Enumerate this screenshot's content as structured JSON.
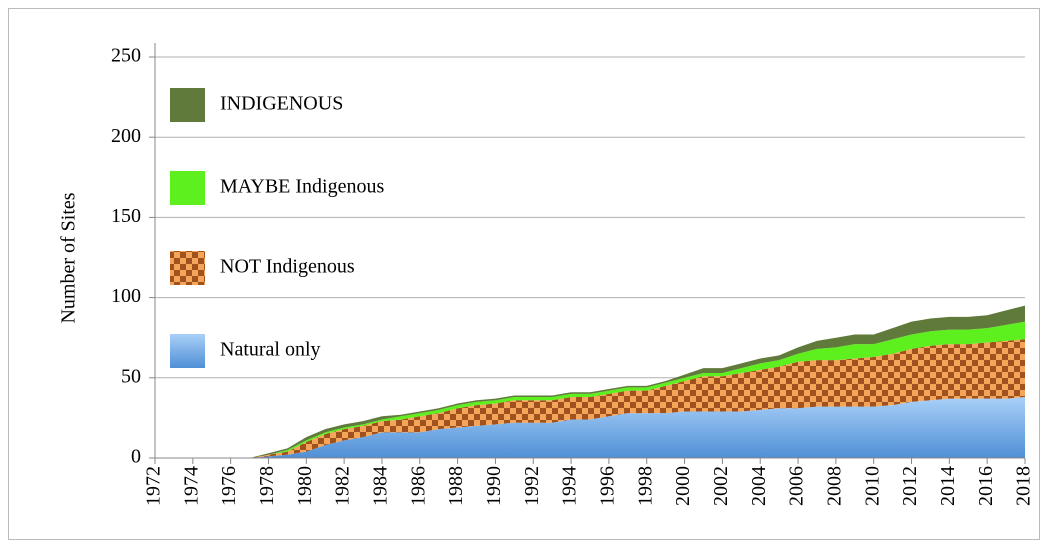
{
  "chart_data": {
    "type": "stacked_area",
    "ylabel": "Number of Sites",
    "x": [
      1972,
      1973,
      1974,
      1975,
      1976,
      1977,
      1978,
      1979,
      1980,
      1981,
      1982,
      1983,
      1984,
      1985,
      1986,
      1987,
      1988,
      1989,
      1990,
      1991,
      1992,
      1993,
      1994,
      1995,
      1996,
      1997,
      1998,
      1999,
      2000,
      2001,
      2002,
      2003,
      2004,
      2005,
      2006,
      2007,
      2008,
      2009,
      2010,
      2011,
      2012,
      2013,
      2014,
      2015,
      2016,
      2017,
      2018
    ],
    "xlim": [
      1972,
      2018
    ],
    "xticks": [
      1972,
      1974,
      1976,
      1978,
      1980,
      1982,
      1984,
      1986,
      1988,
      1990,
      1992,
      1994,
      1996,
      1998,
      2000,
      2002,
      2004,
      2006,
      2008,
      2010,
      2012,
      2014,
      2016,
      2018
    ],
    "ylim": [
      0,
      250
    ],
    "yticks": [
      0,
      50,
      100,
      150,
      200,
      250
    ],
    "grid": true,
    "legend": "upper left",
    "series": [
      {
        "name": "Natural only",
        "color": "#6fa8e6",
        "values": [
          0,
          0,
          0,
          0,
          0,
          0,
          1,
          2,
          4,
          8,
          11,
          13,
          16,
          16,
          16,
          18,
          19,
          20,
          21,
          22,
          22,
          22,
          24,
          24,
          26,
          28,
          28,
          28,
          29,
          29,
          29,
          29,
          30,
          31,
          31,
          32,
          32,
          32,
          32,
          33,
          35,
          36,
          37,
          37,
          37,
          37,
          38
        ]
      },
      {
        "name": "NOT Indigenous",
        "color": "#f5a55a",
        "hatch_color": "#a0521e",
        "values": [
          0,
          0,
          0,
          0,
          0,
          0,
          1,
          2,
          6,
          7,
          7,
          7,
          7,
          8,
          10,
          10,
          12,
          13,
          13,
          14,
          14,
          14,
          14,
          14,
          14,
          14,
          14,
          17,
          19,
          22,
          22,
          24,
          25,
          26,
          29,
          29,
          29,
          30,
          31,
          32,
          33,
          34,
          34,
          34,
          35,
          36,
          36
        ]
      },
      {
        "name": "MAYBE Indigenous",
        "color": "#5ef01e",
        "values": [
          0,
          0,
          0,
          0,
          0,
          0,
          0,
          1,
          1,
          1,
          1,
          1,
          1,
          2,
          2,
          2,
          2,
          2,
          2,
          2,
          2,
          2,
          2,
          2,
          2,
          2,
          2,
          2,
          2,
          2,
          2,
          3,
          4,
          4,
          5,
          7,
          8,
          9,
          8,
          9,
          9,
          9,
          9,
          9,
          9,
          10,
          11
        ]
      },
      {
        "name": "INDIGENOUS",
        "color": "#5f7a3a",
        "values": [
          0,
          0,
          0,
          0,
          0,
          0,
          1,
          1,
          2,
          2,
          2,
          2,
          2,
          1,
          1,
          1,
          1,
          1,
          1,
          1,
          1,
          1,
          1,
          1,
          1,
          1,
          1,
          1,
          2,
          3,
          3,
          3,
          3,
          3,
          4,
          5,
          6,
          6,
          6,
          7,
          8,
          8,
          8,
          8,
          8,
          9,
          10
        ]
      }
    ]
  }
}
